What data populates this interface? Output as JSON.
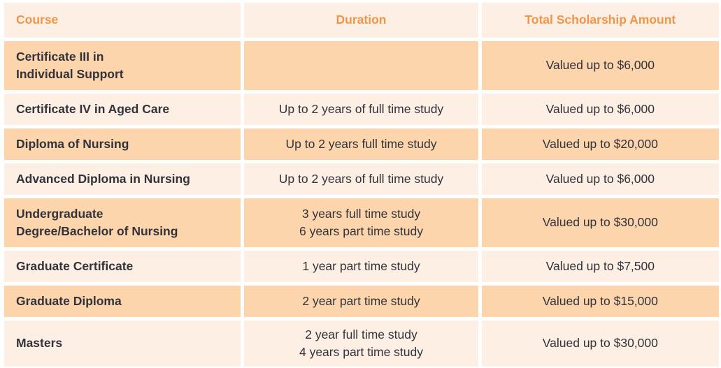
{
  "colors": {
    "page_background": "#ffffff",
    "row_dark_background": "#fcd5ac",
    "row_light_background": "#fdefe3",
    "header_text": "#f0964a",
    "body_text": "#32323a"
  },
  "table": {
    "columns": [
      {
        "label": "Course"
      },
      {
        "label": "Duration"
      },
      {
        "label": "Total Scholarship Amount"
      }
    ],
    "rows": [
      {
        "course": "Certificate III in\nIndividual Support",
        "duration": "",
        "amount": "Valued up to $6,000"
      },
      {
        "course": "Certificate IV in Aged Care",
        "duration": "Up to 2 years of full time study",
        "amount": "Valued up to $6,000"
      },
      {
        "course": "Diploma of Nursing",
        "duration": "Up to 2 years full time study",
        "amount": "Valued up to $20,000"
      },
      {
        "course": "Advanced Diploma in Nursing",
        "duration": "Up to 2 years of full time study",
        "amount": "Valued up to $6,000"
      },
      {
        "course": "Undergraduate\nDegree/Bachelor of Nursing",
        "duration": "3 years full time study\n6 years part time study",
        "amount": "Valued up to $30,000"
      },
      {
        "course": "Graduate Certificate",
        "duration": "1 year part time study",
        "amount": "Valued up to $7,500"
      },
      {
        "course": "Graduate Diploma",
        "duration": "2 year part time study",
        "amount": "Valued up to $15,000"
      },
      {
        "course": "Masters",
        "duration": "2 year full time study\n4 years part time study",
        "amount": "Valued up to $30,000"
      }
    ]
  }
}
